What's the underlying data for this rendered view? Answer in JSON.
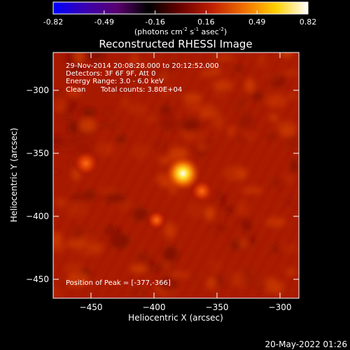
{
  "chart_data": {
    "type": "heatmap",
    "title": "Reconstructed RHESSI Image",
    "xlabel": "Heliocentric X (arcsec)",
    "ylabel": "Heliocentric Y (arcsec)",
    "xlim": [
      -480,
      -285
    ],
    "ylim": [
      -465,
      -270
    ],
    "xticks": [
      -450,
      -400,
      -350,
      -300
    ],
    "yticks": [
      -300,
      -350,
      -400,
      -450
    ],
    "colorbar": {
      "min": -0.82,
      "max": 0.82,
      "ticks": [
        "-0.82",
        "-0.49",
        "-0.16",
        "0.16",
        "0.49",
        "0.82"
      ],
      "label_parts": [
        "(photons cm",
        "-2",
        " s",
        "-1",
        " asec",
        "-2",
        ")"
      ],
      "colormap": [
        "#0000ff",
        "#3a00b0",
        "#5a0070",
        "#000000",
        "#6a0000",
        "#c02000",
        "#f07000",
        "#ffd000",
        "#ffffff"
      ]
    },
    "sources": [
      {
        "x": -377,
        "y": -366,
        "intensity": 0.82
      },
      {
        "x": -454,
        "y": -358,
        "intensity": 0.5
      },
      {
        "x": -362,
        "y": -380,
        "intensity": 0.42
      },
      {
        "x": -398,
        "y": -403,
        "intensity": 0.32
      }
    ],
    "peak": {
      "x": -377,
      "y": -366
    }
  },
  "annotations": {
    "time_range": "29-Nov-2014 20:08:28.000 to 20:12:52.000",
    "detectors": "Detectors: 3F 6F 9F, Att 0",
    "energy": "Energy Range: 3.0 - 6.0 keV",
    "method": "Clean",
    "counts": "Total counts: 3.80E+04",
    "peak_text": "Position of Peak = [-377,-366]"
  },
  "footer": {
    "date": "20-May-2022 01:26"
  }
}
